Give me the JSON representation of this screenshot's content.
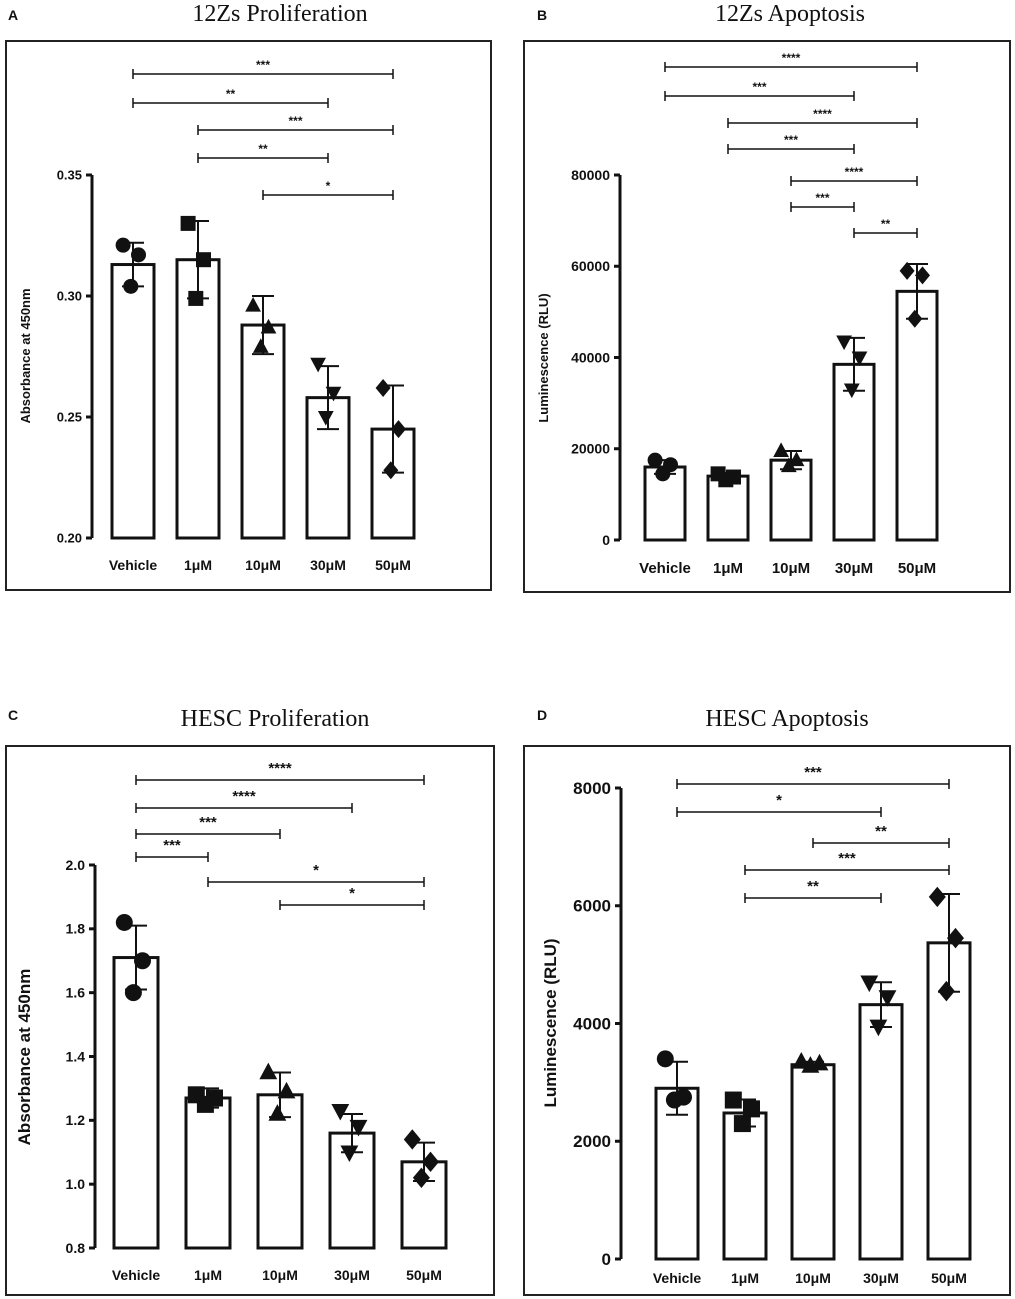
{
  "chart_data": [
    {
      "panel": "A",
      "type": "bar",
      "title": "12Zs Proliferation",
      "ylabel": "Absorbance at 450nm",
      "categories": [
        "Vehicle",
        "1μM",
        "10μM",
        "30μM",
        "50μM"
      ],
      "values": [
        0.313,
        0.315,
        0.288,
        0.258,
        0.245
      ],
      "errors": [
        0.009,
        0.016,
        0.012,
        0.013,
        0.018
      ],
      "points": [
        [
          0.321,
          0.317,
          0.304
        ],
        [
          0.33,
          0.315,
          0.299
        ],
        [
          0.296,
          0.287,
          0.279
        ],
        [
          0.272,
          0.26,
          0.25
        ],
        [
          0.262,
          0.245,
          0.228
        ]
      ],
      "markers": [
        "circle",
        "square",
        "triangle",
        "triangle-down",
        "diamond"
      ],
      "ylim": [
        0.2,
        0.35
      ],
      "yticks": [
        0.2,
        0.25,
        0.3,
        0.35
      ],
      "ytick_labels": [
        "0.20",
        "0.25",
        "0.30",
        "0.35"
      ],
      "significance": [
        {
          "from": "Vehicle",
          "to": "50μM",
          "label": "***"
        },
        {
          "from": "Vehicle",
          "to": "30μM",
          "label": "**"
        },
        {
          "from": "1μM",
          "to": "50μM",
          "label": "***"
        },
        {
          "from": "1μM",
          "to": "30μM",
          "label": "**"
        },
        {
          "from": "10μM",
          "to": "50μM",
          "label": "*"
        }
      ]
    },
    {
      "panel": "B",
      "type": "bar",
      "title": "12Zs Apoptosis",
      "ylabel": "Luminescence (RLU)",
      "categories": [
        "Vehicle",
        "1μM",
        "10μM",
        "30μM",
        "50μM"
      ],
      "values": [
        16000,
        14000,
        17500,
        38500,
        54500
      ],
      "errors": [
        1500,
        700,
        2000,
        5800,
        6000
      ],
      "points": [
        [
          17500,
          16500,
          14500
        ],
        [
          14500,
          13800,
          13200
        ],
        [
          19500,
          17500,
          16200
        ],
        [
          43500,
          40000,
          33000
        ],
        [
          59000,
          58000,
          48500
        ]
      ],
      "markers": [
        "circle",
        "square",
        "triangle",
        "triangle-down",
        "diamond"
      ],
      "ylim": [
        0,
        80000
      ],
      "yticks": [
        0,
        20000,
        40000,
        60000,
        80000
      ],
      "ytick_labels": [
        "0",
        "20000",
        "40000",
        "60000",
        "80000"
      ],
      "significance": [
        {
          "from": "Vehicle",
          "to": "50μM",
          "label": "****"
        },
        {
          "from": "Vehicle",
          "to": "30μM",
          "label": "***"
        },
        {
          "from": "1μM",
          "to": "50μM",
          "label": "****"
        },
        {
          "from": "1μM",
          "to": "30μM",
          "label": "***"
        },
        {
          "from": "10μM",
          "to": "50μM",
          "label": "****"
        },
        {
          "from": "10μM",
          "to": "30μM",
          "label": "***"
        },
        {
          "from": "30μM",
          "to": "50μM",
          "label": "**"
        }
      ]
    },
    {
      "panel": "C",
      "type": "bar",
      "title": "HESC Proliferation",
      "ylabel": "Absorbance at 450nm",
      "categories": [
        "Vehicle",
        "1μM",
        "10μM",
        "30μM",
        "50μM"
      ],
      "values": [
        1.71,
        1.27,
        1.28,
        1.16,
        1.07
      ],
      "errors": [
        0.1,
        0.03,
        0.07,
        0.06,
        0.06
      ],
      "points": [
        [
          1.82,
          1.7,
          1.6
        ],
        [
          1.28,
          1.27,
          1.25
        ],
        [
          1.35,
          1.29,
          1.22
        ],
        [
          1.23,
          1.18,
          1.1
        ],
        [
          1.14,
          1.07,
          1.02
        ]
      ],
      "markers": [
        "circle",
        "square",
        "triangle",
        "triangle-down",
        "diamond"
      ],
      "ylim": [
        0.8,
        2.0
      ],
      "yticks": [
        0.8,
        1.0,
        1.2,
        1.4,
        1.6,
        1.8,
        2.0
      ],
      "ytick_labels": [
        "0.8",
        "1.0",
        "1.2",
        "1.4",
        "1.6",
        "1.8",
        "2.0"
      ],
      "significance": [
        {
          "from": "Vehicle",
          "to": "50μM",
          "label": "****"
        },
        {
          "from": "Vehicle",
          "to": "30μM",
          "label": "****"
        },
        {
          "from": "Vehicle",
          "to": "10μM",
          "label": "***"
        },
        {
          "from": "Vehicle",
          "to": "1μM",
          "label": "***"
        },
        {
          "from": "1μM",
          "to": "50μM",
          "label": "*"
        },
        {
          "from": "10μM",
          "to": "50μM",
          "label": "*"
        }
      ]
    },
    {
      "panel": "D",
      "type": "bar",
      "title": "HESC Apoptosis",
      "ylabel": "Luminescence (RLU)",
      "categories": [
        "Vehicle",
        "1μM",
        "10μM",
        "30μM",
        "50μM"
      ],
      "values": [
        2900,
        2480,
        3300,
        4320,
        5370
      ],
      "errors": [
        450,
        230,
        50,
        380,
        830
      ],
      "points": [
        [
          3400,
          2750,
          2700
        ],
        [
          2700,
          2550,
          2300
        ],
        [
          3350,
          3320,
          3280
        ],
        [
          4700,
          4450,
          3950
        ],
        [
          6150,
          5450,
          4550
        ]
      ],
      "markers": [
        "circle",
        "square",
        "triangle",
        "triangle-down",
        "diamond"
      ],
      "ylim": [
        0,
        8000
      ],
      "yticks": [
        0,
        2000,
        4000,
        6000,
        8000
      ],
      "ytick_labels": [
        "0",
        "2000",
        "4000",
        "6000",
        "8000"
      ],
      "significance": [
        {
          "from": "Vehicle",
          "to": "50μM",
          "label": "***"
        },
        {
          "from": "Vehicle",
          "to": "30μM",
          "label": "*"
        },
        {
          "from": "10μM",
          "to": "50μM",
          "label": "**"
        },
        {
          "from": "1μM",
          "to": "50μM",
          "label": "***"
        },
        {
          "from": "1μM",
          "to": "30μM",
          "label": "**"
        }
      ]
    }
  ]
}
